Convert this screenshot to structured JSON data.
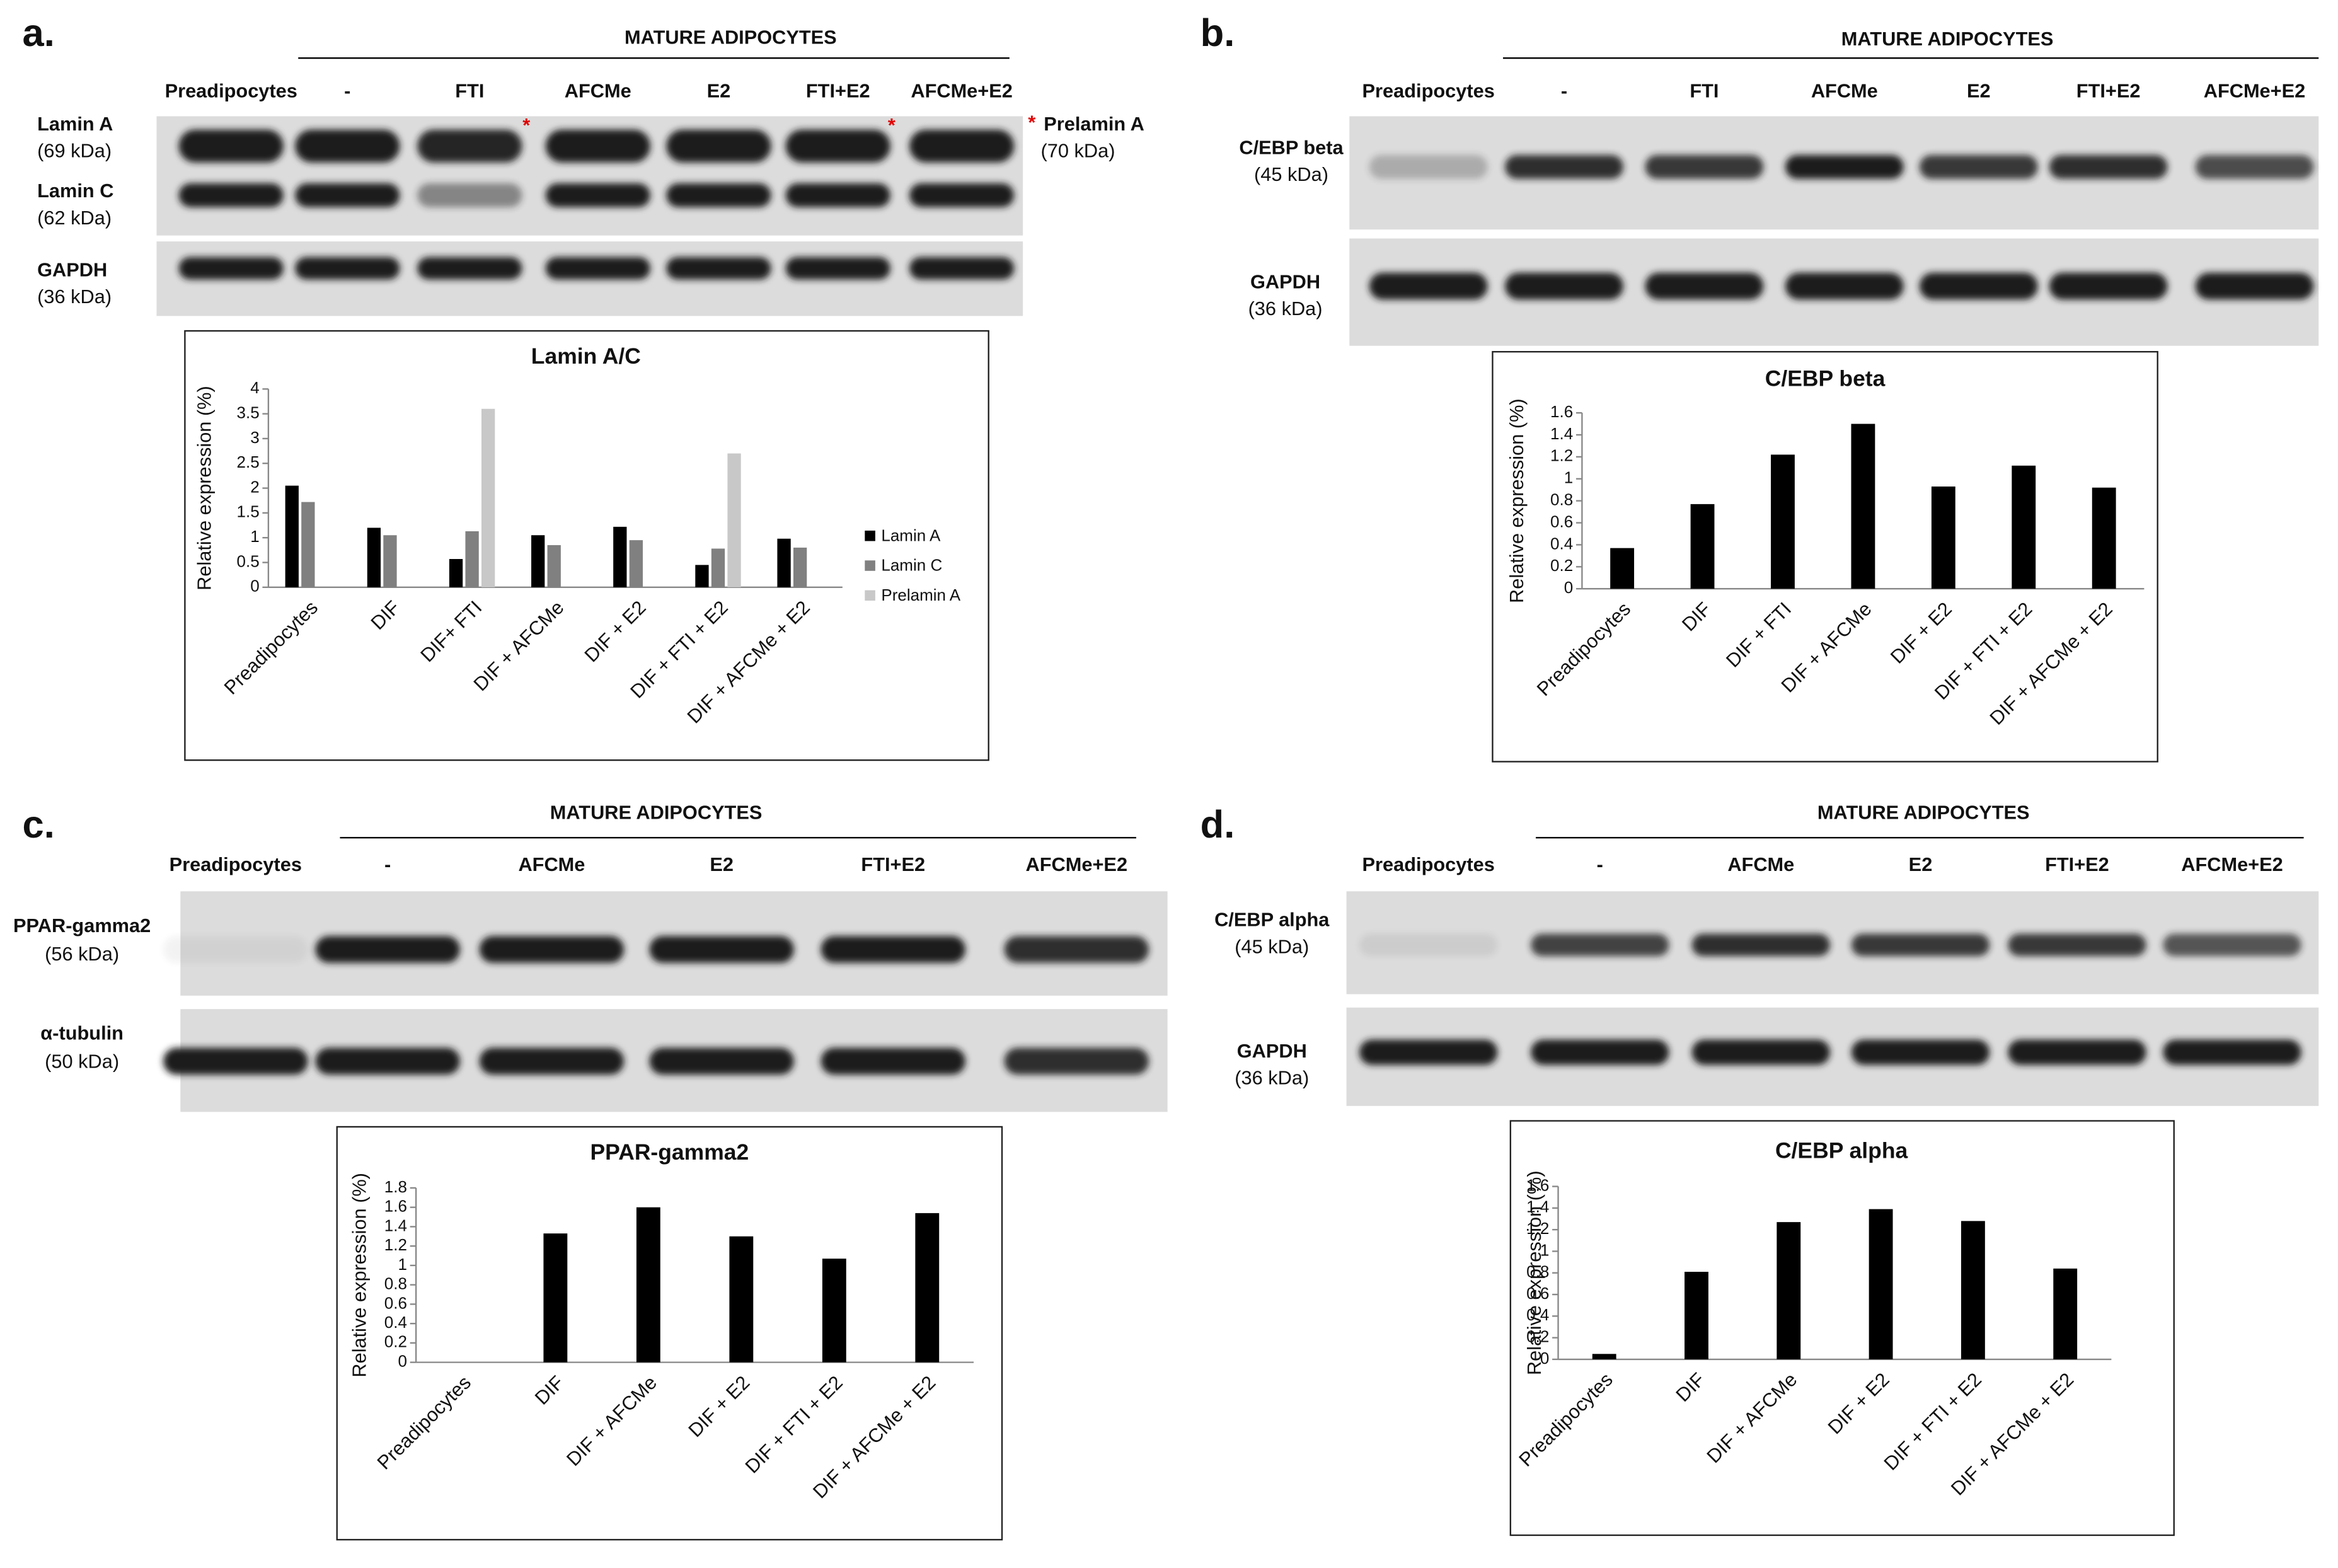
{
  "panels": [
    {
      "label": "a.",
      "header": "MATURE ADIPOCYTES",
      "lanes": [
        "Preadipocytes",
        "-",
        "FTI",
        "AFCMe",
        "E2",
        "FTI+E2",
        "AFCMe+E2"
      ],
      "rows": [
        {
          "name": "Lamin A",
          "size": "(69 kDa)"
        },
        {
          "name": "Lamin C",
          "size": "(62 kDa)"
        },
        {
          "name": "GAPDH",
          "size": "(36 kDa)"
        }
      ],
      "marker": "*",
      "side_label": {
        "name": "Prelamin A",
        "size": "(70 kDa)"
      }
    },
    {
      "label": "b.",
      "header": "MATURE ADIPOCYTES",
      "lanes": [
        "Preadipocytes",
        "-",
        "FTI",
        "AFCMe",
        "E2",
        "FTI+E2",
        "AFCMe+E2"
      ],
      "rows": [
        {
          "name": "C/EBP beta",
          "size": "(45 kDa)"
        },
        {
          "name": "GAPDH",
          "size": "(36 kDa)"
        }
      ]
    },
    {
      "label": "c.",
      "header": "MATURE ADIPOCYTES",
      "lanes": [
        "Preadipocytes",
        "-",
        "AFCMe",
        "E2",
        "FTI+E2",
        "AFCMe+E2"
      ],
      "rows": [
        {
          "name": "PPAR-gamma2",
          "size": "(56 kDa)"
        },
        {
          "name": "α-tubulin",
          "size": "(50 kDa)"
        }
      ]
    },
    {
      "label": "d.",
      "header": "MATURE ADIPOCYTES",
      "lanes": [
        "Preadipocytes",
        "-",
        "AFCMe",
        "E2",
        "FTI+E2",
        "AFCMe+E2"
      ],
      "rows": [
        {
          "name": "C/EBP alpha",
          "size": "(45 kDa)"
        },
        {
          "name": "GAPDH",
          "size": "(36 kDa)"
        }
      ]
    }
  ],
  "chart_data": [
    {
      "type": "bar",
      "title": "Lamin A/C",
      "y_label": "Relative expression (%)",
      "categories": [
        "Preadipocytes",
        "DIF",
        "DIF+ FTI",
        "DIF + AFCMe",
        "DIF + E2",
        "DIF + FTI + E2",
        "DIF + AFCMe + E2"
      ],
      "series": [
        {
          "name": "Lamin A",
          "color": "#000000",
          "values": [
            2.05,
            1.2,
            0.57,
            1.05,
            1.22,
            0.45,
            0.98
          ]
        },
        {
          "name": "Lamin C",
          "color": "#808080",
          "values": [
            1.72,
            1.05,
            1.13,
            0.85,
            0.95,
            0.78,
            0.8
          ]
        },
        {
          "name": "Prelamin A",
          "color": "#c8c8c8",
          "values": [
            null,
            null,
            3.6,
            null,
            null,
            2.7,
            null
          ]
        }
      ],
      "ylim": [
        0,
        4
      ],
      "yticks": [
        0,
        0.5,
        1,
        1.5,
        2,
        2.5,
        3,
        3.5,
        4
      ],
      "legend": "right"
    },
    {
      "type": "bar",
      "title": "C/EBP beta",
      "y_label": "Relative expression (%)",
      "categories": [
        "Preadipocytes",
        "DIF",
        "DIF + FTI",
        "DIF + AFCMe",
        "DIF + E2",
        "DIF + FTI + E2",
        "DIF + AFCMe + E2"
      ],
      "values": [
        0.37,
        0.77,
        1.22,
        1.5,
        0.93,
        1.12,
        0.92
      ],
      "color": "#000000",
      "ylim": [
        0,
        1.6
      ],
      "yticks": [
        0,
        0.2,
        0.4,
        0.6,
        0.8,
        1,
        1.2,
        1.4,
        1.6
      ]
    },
    {
      "type": "bar",
      "title": "PPAR-gamma2",
      "y_label": "Relative expression (%)",
      "categories": [
        "Preadipocytes",
        "DIF",
        "DIF + AFCMe",
        "DIF + E2",
        "DIF + FTI + E2",
        "DIF + AFCMe + E2"
      ],
      "values": [
        0,
        1.33,
        1.6,
        1.3,
        1.07,
        1.54
      ],
      "color": "#000000",
      "ylim": [
        0,
        1.8
      ],
      "yticks": [
        0,
        0.2,
        0.4,
        0.6,
        0.8,
        1,
        1.2,
        1.4,
        1.6,
        1.8
      ]
    },
    {
      "type": "bar",
      "title": "C/EBP alpha",
      "y_label": "Relative expression (%)",
      "categories": [
        "Preadipocytes",
        "DIF",
        "DIF + AFCMe",
        "DIF + E2",
        "DIF + FTI + E2",
        "DIF + AFCMe + E2"
      ],
      "values": [
        0.05,
        0.81,
        1.27,
        1.39,
        1.28,
        0.84
      ],
      "color": "#000000",
      "ylim": [
        0,
        1.6
      ],
      "yticks": [
        0,
        0.2,
        0.4,
        0.6,
        0.8,
        1,
        1.2,
        1.4,
        1.6
      ]
    }
  ]
}
